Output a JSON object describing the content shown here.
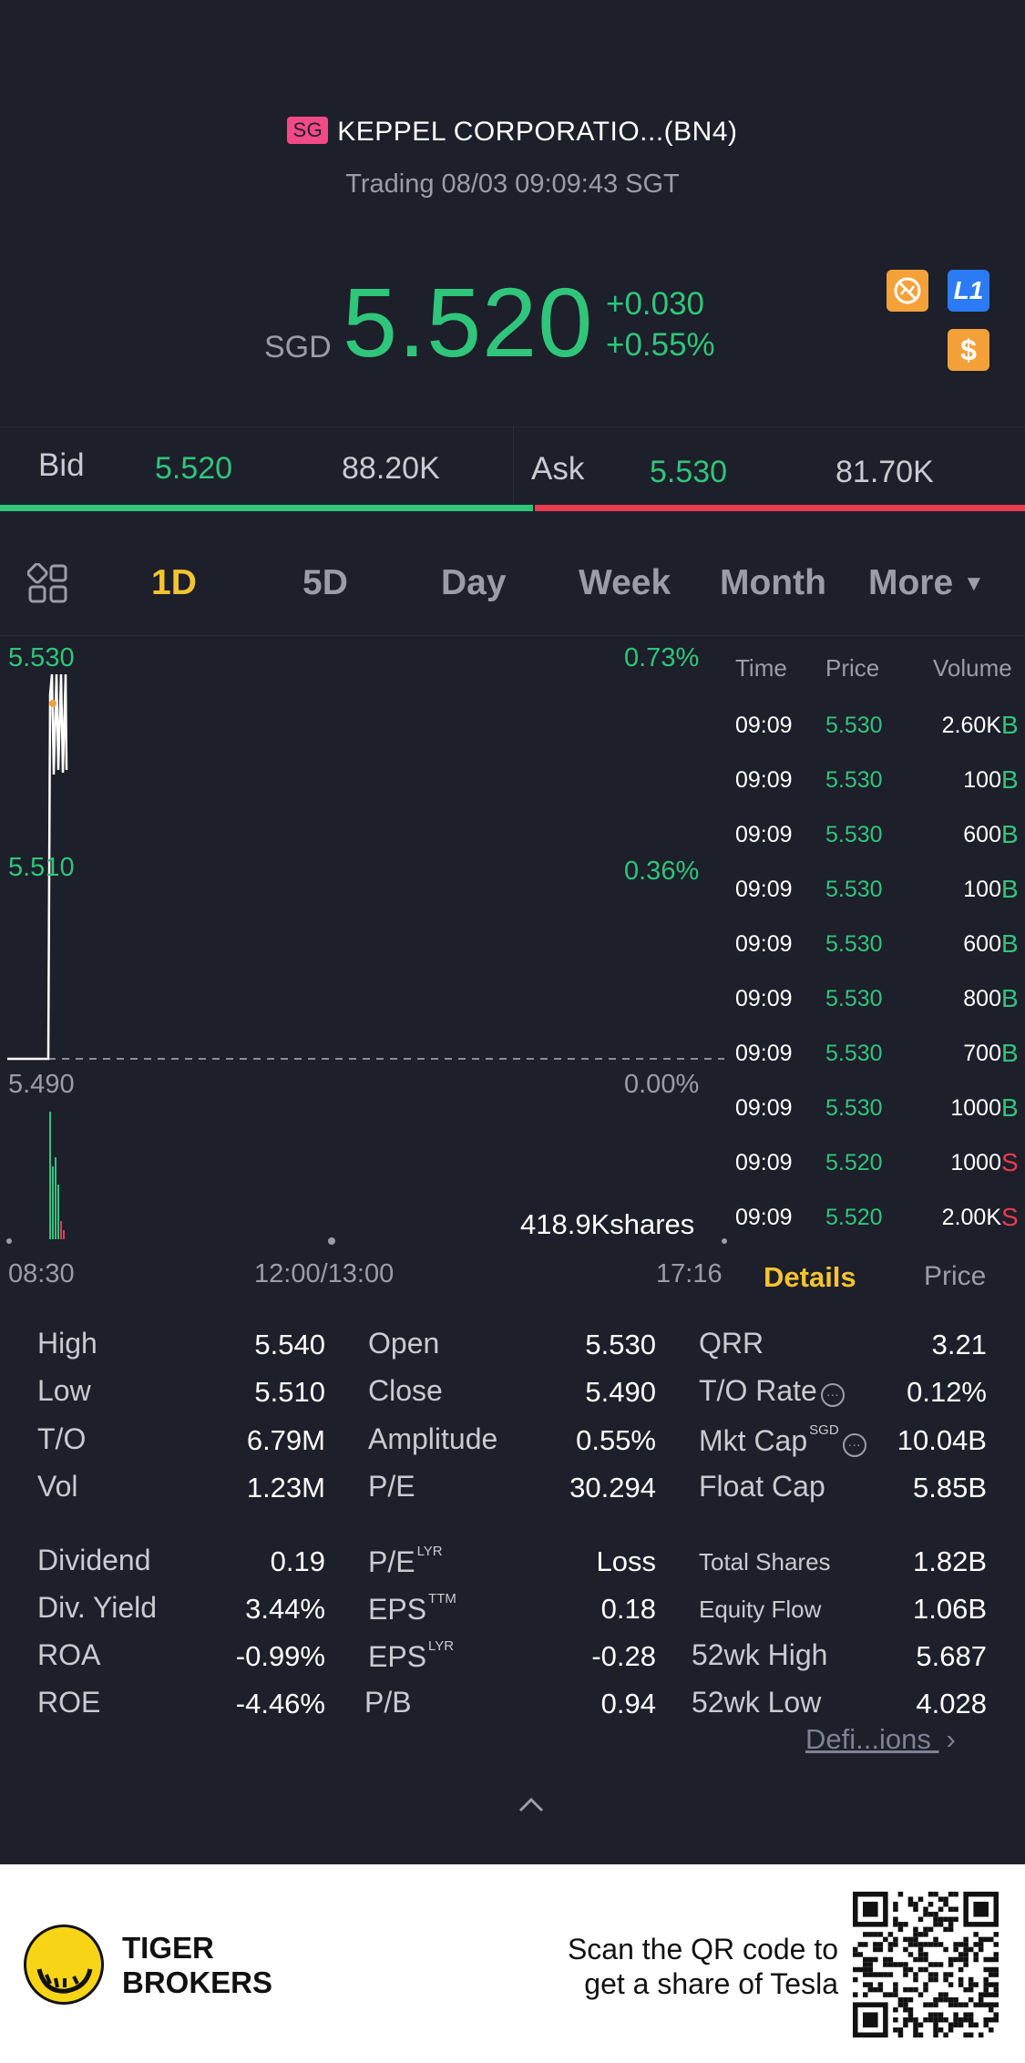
{
  "header": {
    "market_badge": "SG",
    "title": "KEPPEL CORPORATIO...(BN4)",
    "status": "Trading 08/03 09:09:43 SGT",
    "currency": "SGD",
    "last_price": "5.520",
    "change_abs": "+0.030",
    "change_pct": "+0.55%",
    "level1_label": "L1",
    "dollar_label": "$"
  },
  "bidask": {
    "bid_label": "Bid",
    "bid_price": "5.520",
    "bid_size": "88.20K",
    "ask_label": "Ask",
    "ask_price": "5.530",
    "ask_size": "81.70K",
    "bid_fraction": 0.52
  },
  "tabs": {
    "items": [
      "1D",
      "5D",
      "Day",
      "Week",
      "Month",
      "More"
    ],
    "active": "1D"
  },
  "chart_data": {
    "type": "line",
    "title": "",
    "y_labels": [
      "5.530",
      "5.510",
      "5.490"
    ],
    "pct_labels": [
      "0.73%",
      "0.36%",
      "0.00%"
    ],
    "prev_close": 5.49,
    "ylim": [
      5.49,
      5.53
    ],
    "x_labels": [
      "08:30",
      "12:00/13:00",
      "17:16"
    ],
    "volume_label": "418.9Kshares"
  },
  "time_sales": {
    "headers": [
      "Time",
      "Price",
      "Volume"
    ],
    "rows": [
      {
        "time": "09:09",
        "price": "5.530",
        "volume": "2.60K",
        "side": "B"
      },
      {
        "time": "09:09",
        "price": "5.530",
        "volume": "100",
        "side": "B"
      },
      {
        "time": "09:09",
        "price": "5.530",
        "volume": "600",
        "side": "B"
      },
      {
        "time": "09:09",
        "price": "5.530",
        "volume": "100",
        "side": "B"
      },
      {
        "time": "09:09",
        "price": "5.530",
        "volume": "600",
        "side": "B"
      },
      {
        "time": "09:09",
        "price": "5.530",
        "volume": "800",
        "side": "B"
      },
      {
        "time": "09:09",
        "price": "5.530",
        "volume": "700",
        "side": "B"
      },
      {
        "time": "09:09",
        "price": "5.530",
        "volume": "1000",
        "side": "B"
      },
      {
        "time": "09:09",
        "price": "5.520",
        "volume": "1000",
        "side": "S"
      },
      {
        "time": "09:09",
        "price": "5.520",
        "volume": "2.00K",
        "side": "S"
      }
    ]
  },
  "detail_tabs": {
    "details": "Details",
    "price": "Price"
  },
  "stats": {
    "col1": [
      {
        "label": "High",
        "value": "5.540"
      },
      {
        "label": "Low",
        "value": "5.510"
      },
      {
        "label": "T/O",
        "value": "6.79M"
      },
      {
        "label": "Vol",
        "value": "1.23M"
      },
      {
        "label": "Dividend",
        "value": "0.19"
      },
      {
        "label": "Div. Yield",
        "value": "3.44%"
      },
      {
        "label": "ROA",
        "value": "-0.99%"
      },
      {
        "label": "ROE",
        "value": "-4.46%"
      }
    ],
    "col2": [
      {
        "label": "Open",
        "value": "5.530",
        "sup": ""
      },
      {
        "label": "Close",
        "value": "5.490",
        "sup": ""
      },
      {
        "label": "Amplitude",
        "value": "0.55%",
        "sup": ""
      },
      {
        "label": "P/E",
        "value": "30.294",
        "sup": ""
      },
      {
        "label": "P/E",
        "value": "Loss",
        "sup": "LYR"
      },
      {
        "label": "EPS",
        "value": "0.18",
        "sup": "TTM"
      },
      {
        "label": "EPS",
        "value": "-0.28",
        "sup": "LYR"
      },
      {
        "label": "P/B",
        "value": "0.94",
        "sup": ""
      }
    ],
    "col3": [
      {
        "label": "QRR",
        "value": "3.21",
        "sup": ""
      },
      {
        "label": "T/O Rate",
        "value": "0.12%",
        "sup": ""
      },
      {
        "label": "Mkt Cap",
        "value": "10.04B",
        "sup": "SGD"
      },
      {
        "label": "Float Cap",
        "value": "5.85B",
        "sup": ""
      },
      {
        "label": "Total Shares",
        "value": "1.82B",
        "sup": ""
      },
      {
        "label": "Equity Flow",
        "value": "1.06B",
        "sup": ""
      },
      {
        "label": "52wk High",
        "value": "5.687",
        "sup": ""
      },
      {
        "label": "52wk Low",
        "value": "4.028",
        "sup": ""
      }
    ],
    "definitions_link": "Defi...ions"
  },
  "footer": {
    "brand_line1": "TIGER",
    "brand_line2": "BROKERS",
    "promo_line1": "Scan the QR code to",
    "promo_line2": "get a share of Tesla"
  },
  "colors": {
    "up": "#2fc57a",
    "down": "#ec3a4e",
    "accent": "#f5c430",
    "background": "#1d1f2a"
  }
}
